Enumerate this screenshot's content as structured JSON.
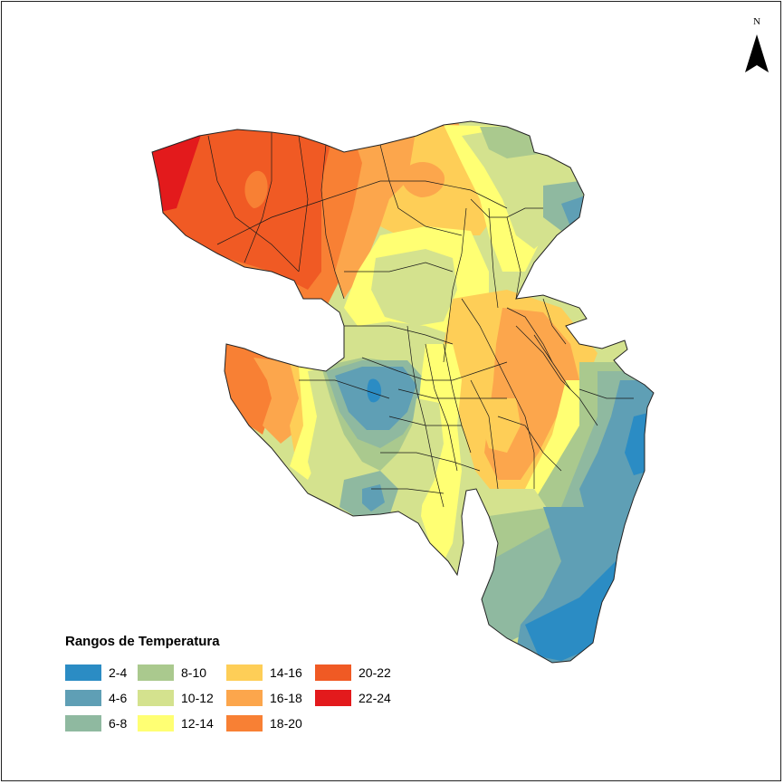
{
  "map": {
    "legend_title": "Rangos de Temperatura",
    "north_label": "N",
    "ranges": [
      {
        "label": "2-4",
        "color": "#2b8cc4"
      },
      {
        "label": "4-6",
        "color": "#5f9fb5"
      },
      {
        "label": "6-8",
        "color": "#8fb9a0"
      },
      {
        "label": "8-10",
        "color": "#aac98e"
      },
      {
        "label": "10-12",
        "color": "#d4e28e"
      },
      {
        "label": "12-14",
        "color": "#ffff73"
      },
      {
        "label": "14-16",
        "color": "#fece57"
      },
      {
        "label": "16-18",
        "color": "#fca64c"
      },
      {
        "label": "18-20",
        "color": "#f88034"
      },
      {
        "label": "20-22",
        "color": "#f05a24"
      },
      {
        "label": "22-24",
        "color": "#e31a1c"
      }
    ]
  }
}
